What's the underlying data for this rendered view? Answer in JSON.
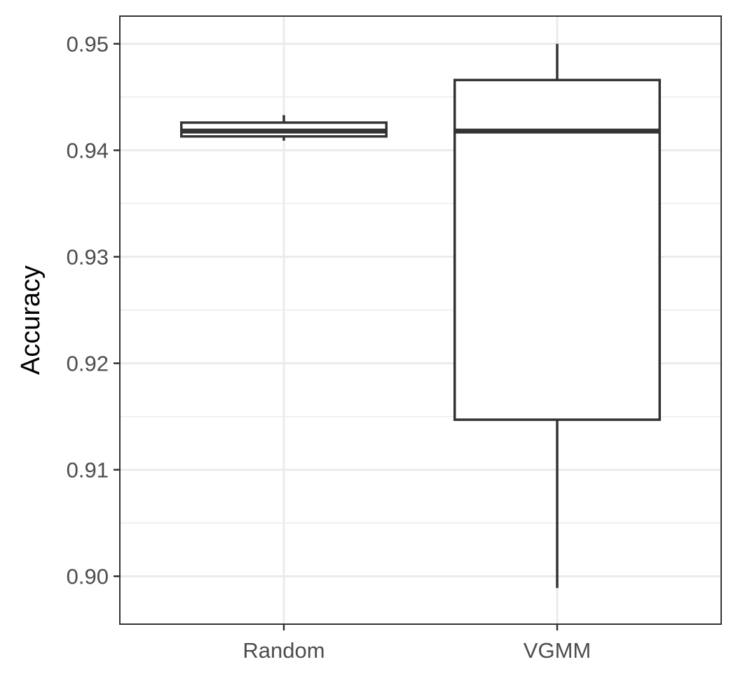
{
  "chart_data": {
    "type": "boxplot",
    "title": "",
    "xlabel": "",
    "ylabel": "Accuracy",
    "ylim": [
      0.8955,
      0.9526
    ],
    "y_ticks": [
      0.9,
      0.91,
      0.92,
      0.93,
      0.94,
      0.95
    ],
    "y_tick_labels": [
      "0.90",
      "0.91",
      "0.92",
      "0.93",
      "0.94",
      "0.95"
    ],
    "y_minor_ticks": [
      0.905,
      0.915,
      0.925,
      0.935,
      0.945
    ],
    "categories": [
      "Random",
      "VGMM"
    ],
    "boxes": [
      {
        "category": "Random",
        "min": 0.9409,
        "q1": 0.9413,
        "median": 0.9418,
        "q3": 0.9426,
        "max": 0.9433
      },
      {
        "category": "VGMM",
        "min": 0.8989,
        "q1": 0.9147,
        "median": 0.9418,
        "q3": 0.9466,
        "max": 0.95
      }
    ],
    "grid": true,
    "legend": "none",
    "colors": {
      "box_line": "#333333",
      "box_fill": "#ffffff",
      "grid": "#ebebeb",
      "tick_label": "#4d4d4d"
    }
  }
}
